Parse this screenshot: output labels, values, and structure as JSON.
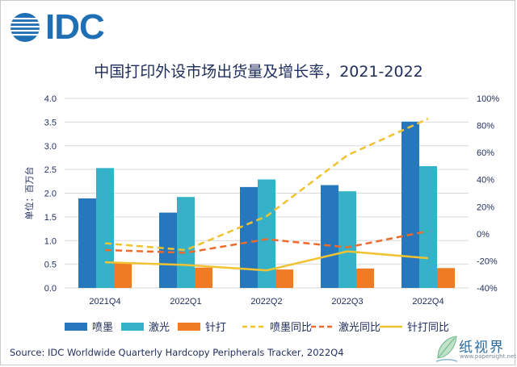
{
  "logo": {
    "text": "IDC"
  },
  "title": "中国打印外设市场出货量及增长率，2021-2022",
  "source": "Source:  IDC Worldwide Quarterly Hardcopy Peripherals Tracker, 2022Q4",
  "watermark": {
    "cn": "纸视界",
    "en": "www.papersight.net"
  },
  "colors": {
    "inkjet": "#2677bb",
    "laser": "#35b2c8",
    "dot": "#ef7b25",
    "inkjet_line": "#f2c22e",
    "laser_line": "#ee6a2c",
    "dot_line": "#f1c232",
    "axis_text": "#1f2d5c"
  },
  "chart_data": {
    "type": "bar",
    "categories": [
      "2021Q4",
      "2022Q1",
      "2022Q2",
      "2022Q3",
      "2022Q4"
    ],
    "ylabel": "单位：百万台",
    "ylim": [
      0,
      4.0
    ],
    "yticks": [
      "0.0",
      "0.5",
      "1.0",
      "1.5",
      "2.0",
      "2.5",
      "3.0",
      "3.5",
      "4.0"
    ],
    "y2lim": [
      -40,
      100
    ],
    "y2ticks": [
      "-40%",
      "-20%",
      "0%",
      "20%",
      "40%",
      "60%",
      "80%",
      "100%"
    ],
    "grid": true,
    "legend_position": "bottom",
    "series": [
      {
        "name": "喷墨",
        "kind": "bar",
        "values": [
          1.89,
          1.59,
          2.13,
          2.17,
          3.51
        ]
      },
      {
        "name": "激光",
        "kind": "bar",
        "values": [
          2.53,
          1.92,
          2.29,
          2.04,
          2.57
        ]
      },
      {
        "name": "针打",
        "kind": "bar",
        "values": [
          0.52,
          0.43,
          0.39,
          0.41,
          0.42
        ]
      },
      {
        "name": "喷墨同比",
        "kind": "line",
        "axis": "right",
        "dash": "dashed",
        "values": [
          -7,
          -12,
          13,
          58,
          85
        ]
      },
      {
        "name": "激光同比",
        "kind": "line",
        "axis": "right",
        "dash": "dashed",
        "values": [
          -12,
          -14,
          -4,
          -10,
          2
        ]
      },
      {
        "name": "针打同比",
        "kind": "line",
        "axis": "right",
        "dash": "solid",
        "values": [
          -21,
          -23,
          -27,
          -13,
          -18
        ]
      }
    ]
  }
}
